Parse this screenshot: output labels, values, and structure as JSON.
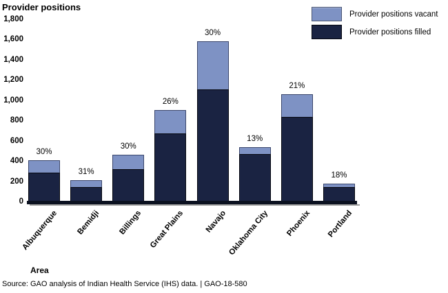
{
  "title": "Provider positions",
  "legend": [
    {
      "label": "Provider positions vacant",
      "color": "#7e92c4"
    },
    {
      "label": "Provider positions filled",
      "color": "#1a2342"
    }
  ],
  "axis_title": "Area",
  "source": "Source: GAO analysis of Indian Health Service (IHS) data.  |  GAO-18-580",
  "chart_data": {
    "type": "bar",
    "stacked": true,
    "title": "Provider positions",
    "xlabel": "Area",
    "ylabel": "Provider positions",
    "categories": [
      "Albuquerque",
      "Bemidji",
      "Billings",
      "Great Plains",
      "Navajo",
      "Oklahoma City",
      "Phoenix",
      "Portland"
    ],
    "series": [
      {
        "name": "Provider positions filled",
        "color": "#1a2342",
        "values": [
          285,
          145,
          320,
          670,
          1110,
          470,
          835,
          145
        ]
      },
      {
        "name": "Provider positions vacant",
        "color": "#7e92c4",
        "values": [
          120,
          65,
          140,
          235,
          470,
          70,
          225,
          30
        ]
      }
    ],
    "totals": [
      405,
      210,
      460,
      905,
      1580,
      540,
      1060,
      175
    ],
    "bar_labels": [
      "30%",
      "31%",
      "30%",
      "26%",
      "30%",
      "13%",
      "21%",
      "18%"
    ],
    "ylim": [
      0,
      1800
    ],
    "ytick_interval": 200,
    "grid": false,
    "legend_position": "top-right"
  }
}
